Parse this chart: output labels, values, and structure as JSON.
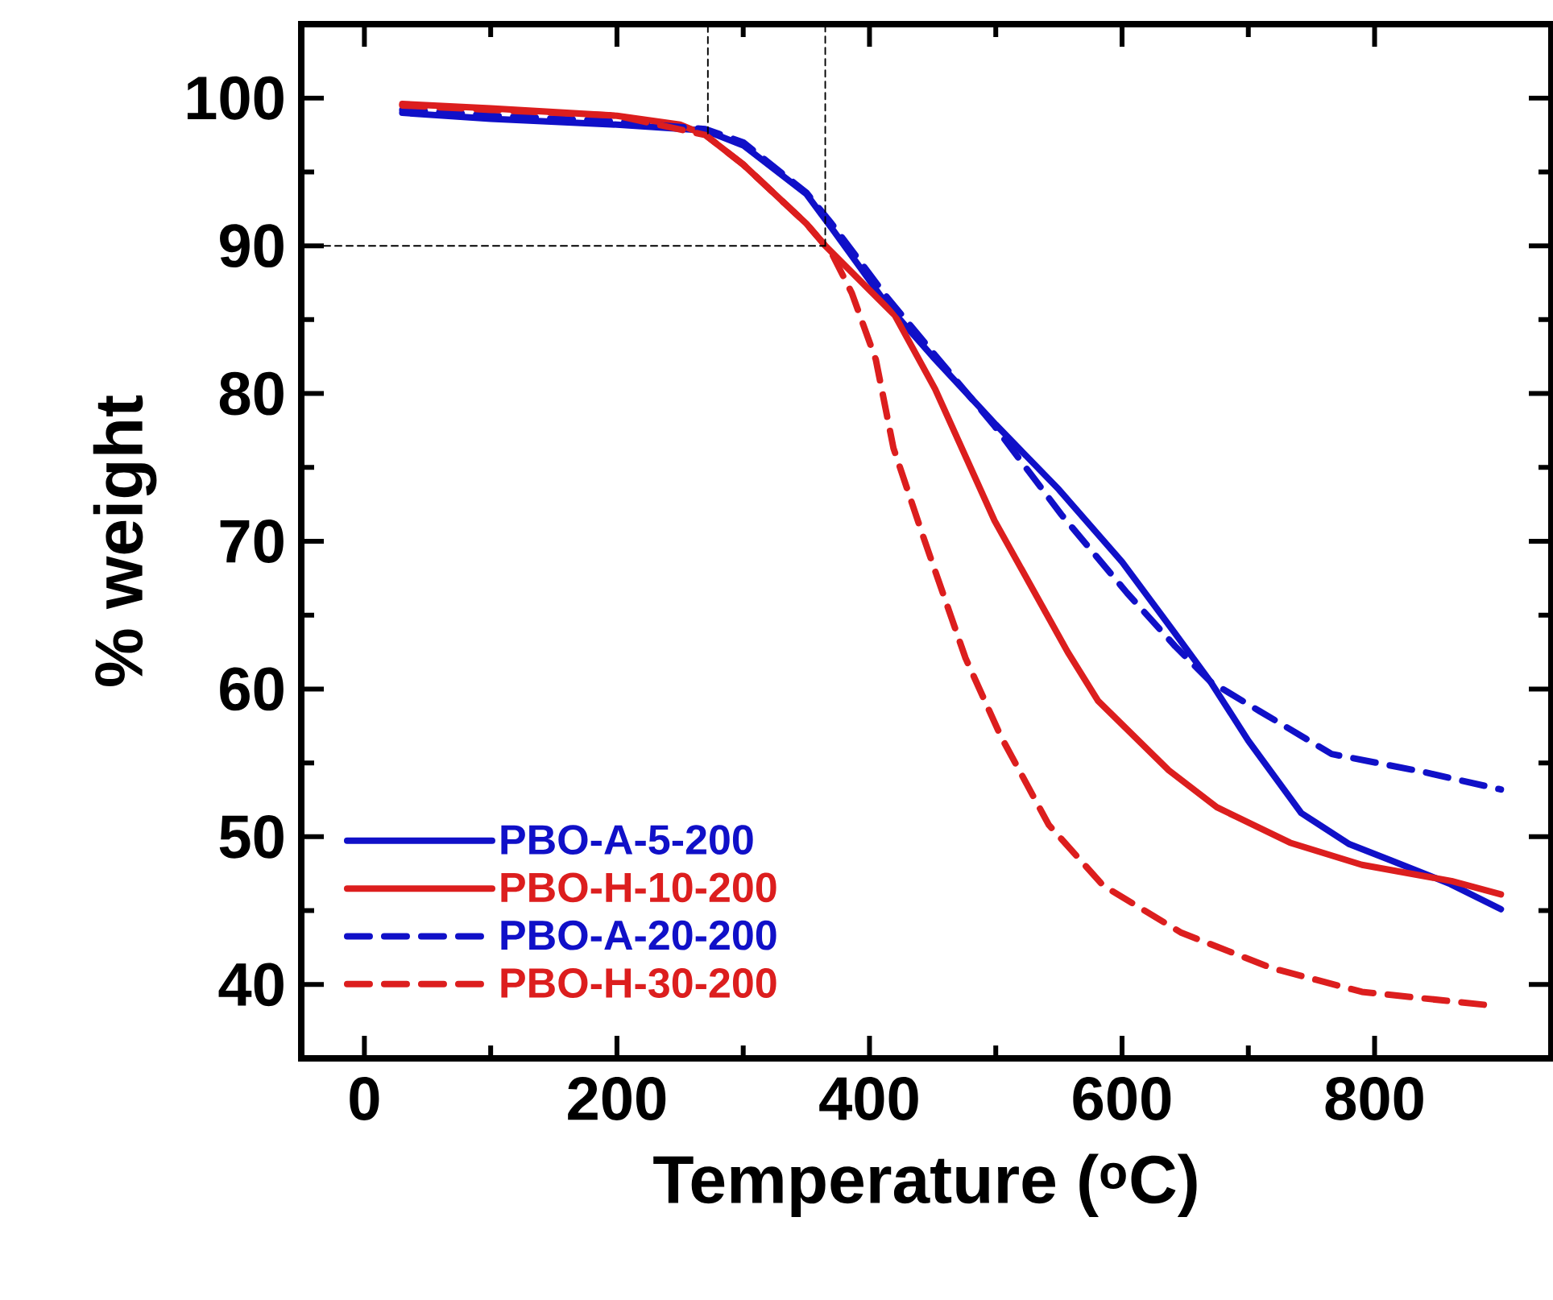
{
  "chart_data": {
    "type": "line",
    "xlabel": "Temperature ($^{o}$C)",
    "ylabel": "% weight",
    "xlim": [
      -50,
      940
    ],
    "ylim": [
      35,
      105
    ],
    "xticks": [
      0,
      200,
      400,
      600,
      800
    ],
    "yticks": [
      40,
      50,
      60,
      70,
      80,
      90,
      100
    ],
    "legend": "bottom left",
    "grid": false,
    "series": [
      {
        "name": "PBO-A-5-200",
        "color": "#1010c8",
        "line_style": "solid",
        "x": [
          30,
          100,
          200,
          270,
          300,
          350,
          370,
          414,
          450,
          500,
          550,
          600,
          640,
          670,
          700,
          742,
          780,
          813,
          860,
          900
        ],
        "values": [
          99.0,
          98.6,
          98.2,
          97.8,
          96.8,
          93.5,
          91.2,
          86,
          82.5,
          77.9,
          73.5,
          68.6,
          64,
          60.5,
          56.5,
          51.6,
          49.5,
          48.4,
          46.8,
          45.1
        ]
      },
      {
        "name": "PBO-H-10-200",
        "color": "#dc1e1e",
        "line_style": "solid",
        "x": [
          30,
          100,
          200,
          250,
          270,
          300,
          350,
          365,
          400,
          420,
          452,
          499,
          557,
          581,
          637,
          675,
          733,
          790,
          861,
          900
        ],
        "values": [
          99.6,
          99.3,
          98.8,
          98.2,
          97.5,
          95.5,
          91.5,
          90,
          87,
          85.3,
          80.3,
          71.4,
          62.5,
          59.2,
          54.5,
          52,
          49.6,
          48.1,
          47,
          46.1
        ]
      },
      {
        "name": "PBO-A-20-200",
        "color": "#1010c8",
        "line_style": "dashed",
        "x": [
          30,
          100,
          200,
          270,
          300,
          350,
          370,
          414,
          450,
          499,
          552,
          604,
          642,
          670,
          709,
          766,
          838,
          900
        ],
        "values": [
          99.2,
          98.8,
          98.4,
          97.9,
          97.0,
          93.6,
          91.5,
          86.5,
          82.8,
          77.8,
          71.8,
          66.5,
          62.9,
          60.5,
          58.5,
          55.6,
          54.4,
          53.2
        ]
      },
      {
        "name": "PBO-H-30-200",
        "color": "#dc1e1e",
        "line_style": "dashed",
        "x": [
          30,
          100,
          200,
          270,
          300,
          350,
          370,
          386,
          405,
          419,
          443,
          476,
          504,
          542,
          585,
          647,
          719,
          790,
          890
        ],
        "values": [
          99.5,
          99.2,
          98.8,
          97.5,
          95.5,
          91.5,
          89.5,
          86.8,
          82.3,
          76.3,
          70.2,
          62.1,
          56.8,
          50.8,
          46.7,
          43.5,
          41.1,
          39.5,
          38.6
        ]
      },
      {
        "color": "#000000",
        "line_style": "dashed",
        "x": [
          -50,
          365
        ],
        "values": [
          90,
          90
        ]
      },
      {
        "color": "#000000",
        "line_style": "dashed",
        "x": [
          365,
          365
        ],
        "values": [
          90,
          105
        ]
      },
      {
        "color": "#000000",
        "line_style": "dashed",
        "x": [
          272,
          272
        ],
        "values": [
          97.6,
          105
        ]
      }
    ]
  }
}
